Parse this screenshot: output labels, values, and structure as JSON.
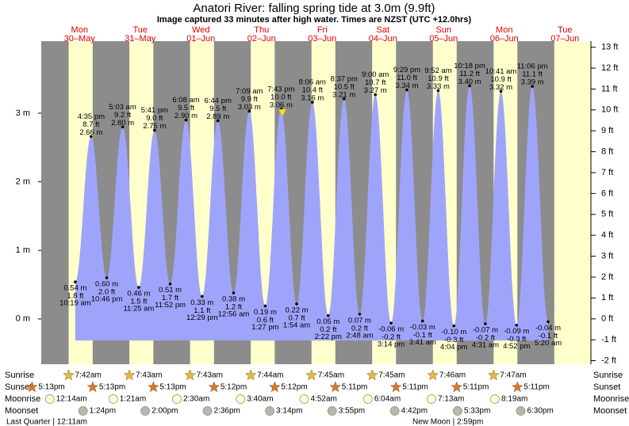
{
  "chart_data": {
    "type": "area",
    "title": "Anatori River: falling  spring tide at 3.0m (9.9ft)",
    "subtitle": "Image captured 33 minutes after high water. Times are NZST (UTC +12.0hrs)",
    "day_names": [
      "Mon",
      "Tue",
      "Wed",
      "Thu",
      "Fri",
      "Sat",
      "Sun",
      "Mon",
      "Tue"
    ],
    "day_dates": [
      "30–May",
      "31–May",
      "01–Jun",
      "02–Jun",
      "03–Jun",
      "04–Jun",
      "05–Jun",
      "06–Jun",
      "07–Jun"
    ],
    "x": [
      "10:19 am",
      "4:35 pm",
      "10:46 pm",
      "5:03 am",
      "11:25 am",
      "5:41 pm",
      "11:52 pm",
      "6:08 am",
      "12:29 pm",
      "6:44 pm",
      "12:56 am",
      "7:09 am",
      "1:27 pm",
      "7:43 pm",
      "1:54 am",
      "8:06 am",
      "2:22 pm",
      "8:37 pm",
      "2:48 am",
      "9:00 am",
      "3:14 pm",
      "9:29 pm",
      "3:41 am",
      "9:52 am",
      "4:04 pm",
      "10:18 pm",
      "4:31 am",
      "10:41 am",
      "4:52 pm",
      "11:06 pm",
      "5:20 am"
    ],
    "values": [
      0.54,
      2.66,
      0.6,
      2.8,
      0.46,
      2.75,
      0.51,
      2.9,
      0.33,
      2.89,
      0.38,
      3.03,
      0.19,
      3.06,
      0.22,
      3.16,
      0.05,
      3.21,
      0.07,
      3.27,
      -0.06,
      3.34,
      -0.03,
      3.33,
      -0.1,
      3.4,
      -0.07,
      3.32,
      -0.09,
      3.39,
      -0.04
    ],
    "value_labels": [
      "0.54 m",
      "2.66 m",
      "0.60 m",
      "2.80 m",
      "0.46 m",
      "2.75 m",
      "0.51 m",
      "2.90 m",
      "0.33 m",
      "2.89 m",
      "0.38 m",
      "3.03 m",
      "0.19 m",
      "3.06 m",
      "0.22 m",
      "3.16 m",
      "0.05 m",
      "3.21 m",
      "0.07 m",
      "3.27 m",
      "-0.06 m",
      "3.34 m",
      "-0.03 m",
      "3.33 m",
      "-0.10 m",
      "3.40 m",
      "-0.07 m",
      "3.32 m",
      "-0.09 m",
      "3.39 m",
      "-0.04 m"
    ],
    "feet": [
      1.8,
      8.7,
      2.0,
      9.2,
      1.5,
      9.0,
      1.7,
      9.5,
      1.1,
      9.5,
      1.2,
      9.9,
      0.6,
      10.0,
      0.7,
      10.4,
      0.2,
      10.5,
      0.2,
      10.7,
      -0.2,
      11.0,
      -0.1,
      10.9,
      -0.3,
      11.2,
      -0.2,
      10.9,
      -0.3,
      11.1,
      -0.1
    ],
    "feet_labels": [
      "1.8 ft",
      "8.7 ft",
      "2.0 ft",
      "9.2 ft",
      "1.5 ft",
      "9.0 ft",
      "1.7 ft",
      "9.5 ft",
      "1.1 ft",
      "9.5 ft",
      "1.2 ft",
      "9.9 ft",
      "0.6 ft",
      "10.0 ft",
      "0.7 ft",
      "10.4 ft",
      "0.2 ft",
      "10.5 ft",
      "0.2 ft",
      "10.7 ft",
      "-0.2 ft",
      "11.0 ft",
      "-0.1 ft",
      "10.9 ft",
      "-0.3 ft",
      "11.2 ft",
      "-0.2 ft",
      "10.9 ft",
      "-0.3 ft",
      "11.1 ft",
      "-0.1 ft"
    ],
    "color": "#9fa4fb",
    "ylim": [
      -0.66,
      4.05
    ],
    "yticks": [
      {
        "value": 0,
        "label": "0 m"
      },
      {
        "value": 1,
        "label": "1 m"
      },
      {
        "value": 2,
        "label": "2 m"
      },
      {
        "value": 3,
        "label": "3 m"
      }
    ],
    "y2lim": [
      -2.17,
      13.29
    ],
    "y2ticks": [
      {
        "value": -2,
        "label": "-2 ft"
      },
      {
        "value": -1,
        "label": "-1 ft"
      },
      {
        "value": 0,
        "label": "0 ft"
      },
      {
        "value": 1,
        "label": "1 ft"
      },
      {
        "value": 2,
        "label": "2 ft"
      },
      {
        "value": 3,
        "label": "3 ft"
      },
      {
        "value": 4,
        "label": "4 ft"
      },
      {
        "value": 5,
        "label": "5 ft"
      },
      {
        "value": 6,
        "label": "6 ft"
      },
      {
        "value": 7,
        "label": "7 ft"
      },
      {
        "value": 8,
        "label": "8 ft"
      },
      {
        "value": 9,
        "label": "9 ft"
      },
      {
        "value": 10,
        "label": "10 ft"
      },
      {
        "value": 11,
        "label": "11 ft"
      },
      {
        "value": 12,
        "label": "12 ft"
      },
      {
        "value": 13,
        "label": "13 ft"
      }
    ]
  },
  "almanac": {
    "labels": [
      "Sunrise",
      "Sunset",
      "Moonrise",
      "Moonset"
    ],
    "sunrise": [
      "7:42am",
      "7:43am",
      "7:43am",
      "7:44am",
      "7:45am",
      "7:45am",
      "7:46am",
      "7:47am"
    ],
    "sunset": [
      "5:13pm",
      "5:13pm",
      "5:13pm",
      "5:12pm",
      "5:12pm",
      "5:11pm",
      "5:11pm",
      "5:11pm",
      "5:11pm"
    ],
    "moonrise": [
      "12:14am",
      "1:21am",
      "2:30am",
      "3:40am",
      "4:52am",
      "6:04am",
      "7:13am",
      "8:19am"
    ],
    "moonset": [
      "1:24pm",
      "2:00pm",
      "2:36pm",
      "3:14pm",
      "3:55pm",
      "4:42pm",
      "5:33pm",
      "6:30pm"
    ]
  },
  "moon_phases": [
    "Last Quarter | 12:11am",
    "New Moon | 2:59pm"
  ]
}
